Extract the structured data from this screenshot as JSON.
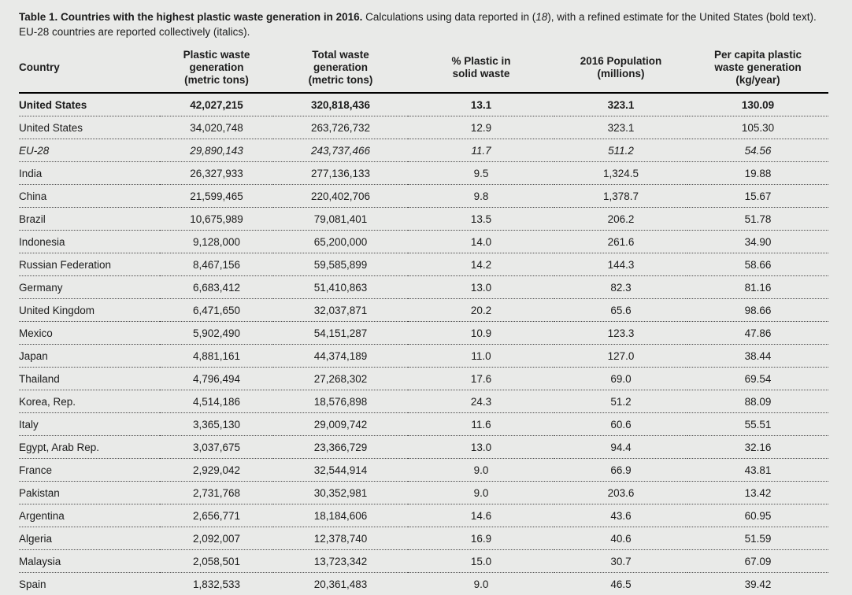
{
  "caption": {
    "title_bold": "Table 1. Countries with the highest plastic waste generation in 2016.",
    "text_before_ref": " Calculations using data reported in (",
    "ref_italic": "18",
    "text_after_ref": "), with a refined estimate for the United States (bold text). EU-28 countries are reported collectively (italics)."
  },
  "table": {
    "headers": [
      "Country",
      "Plastic waste\ngeneration\n(metric tons)",
      "Total waste\ngeneration\n(metric tons)",
      "% Plastic in\nsolid waste",
      "2016 Population\n(millions)",
      "Per capita plastic\nwaste generation\n(kg/year)"
    ],
    "column_keys": [
      "country",
      "plastic-waste-generation",
      "total-waste-generation",
      "pct-plastic-in-solid-waste",
      "population-2016-millions",
      "per-capita-plastic-waste-kg-year"
    ],
    "rows": [
      {
        "style": "bold",
        "cells": [
          "United States",
          "42,027,215",
          "320,818,436",
          "13.1",
          "323.1",
          "130.09"
        ]
      },
      {
        "style": "normal",
        "cells": [
          "United States",
          "34,020,748",
          "263,726,732",
          "12.9",
          "323.1",
          "105.30"
        ]
      },
      {
        "style": "italic",
        "cells": [
          "EU-28",
          "29,890,143",
          "243,737,466",
          "11.7",
          "511.2",
          "54.56"
        ]
      },
      {
        "style": "normal",
        "cells": [
          "India",
          "26,327,933",
          "277,136,133",
          "9.5",
          "1,324.5",
          "19.88"
        ]
      },
      {
        "style": "normal",
        "cells": [
          "China",
          "21,599,465",
          "220,402,706",
          "9.8",
          "1,378.7",
          "15.67"
        ]
      },
      {
        "style": "normal",
        "cells": [
          "Brazil",
          "10,675,989",
          "79,081,401",
          "13.5",
          "206.2",
          "51.78"
        ]
      },
      {
        "style": "normal",
        "cells": [
          "Indonesia",
          "9,128,000",
          "65,200,000",
          "14.0",
          "261.6",
          "34.90"
        ]
      },
      {
        "style": "normal",
        "cells": [
          "Russian Federation",
          "8,467,156",
          "59,585,899",
          "14.2",
          "144.3",
          "58.66"
        ]
      },
      {
        "style": "normal",
        "cells": [
          "Germany",
          "6,683,412",
          "51,410,863",
          "13.0",
          "82.3",
          "81.16"
        ]
      },
      {
        "style": "normal",
        "cells": [
          "United Kingdom",
          "6,471,650",
          "32,037,871",
          "20.2",
          "65.6",
          "98.66"
        ]
      },
      {
        "style": "normal",
        "cells": [
          "Mexico",
          "5,902,490",
          "54,151,287",
          "10.9",
          "123.3",
          "47.86"
        ]
      },
      {
        "style": "normal",
        "cells": [
          "Japan",
          "4,881,161",
          "44,374,189",
          "11.0",
          "127.0",
          "38.44"
        ]
      },
      {
        "style": "normal",
        "cells": [
          "Thailand",
          "4,796,494",
          "27,268,302",
          "17.6",
          "69.0",
          "69.54"
        ]
      },
      {
        "style": "normal",
        "cells": [
          "Korea, Rep.",
          "4,514,186",
          "18,576,898",
          "24.3",
          "51.2",
          "88.09"
        ]
      },
      {
        "style": "normal",
        "cells": [
          "Italy",
          "3,365,130",
          "29,009,742",
          "11.6",
          "60.6",
          "55.51"
        ]
      },
      {
        "style": "normal",
        "cells": [
          "Egypt, Arab Rep.",
          "3,037,675",
          "23,366,729",
          "13.0",
          "94.4",
          "32.16"
        ]
      },
      {
        "style": "normal",
        "cells": [
          "France",
          "2,929,042",
          "32,544,914",
          "9.0",
          "66.9",
          "43.81"
        ]
      },
      {
        "style": "normal",
        "cells": [
          "Pakistan",
          "2,731,768",
          "30,352,981",
          "9.0",
          "203.6",
          "13.42"
        ]
      },
      {
        "style": "normal",
        "cells": [
          "Argentina",
          "2,656,771",
          "18,184,606",
          "14.6",
          "43.6",
          "60.95"
        ]
      },
      {
        "style": "normal",
        "cells": [
          "Algeria",
          "2,092,007",
          "12,378,740",
          "16.9",
          "40.6",
          "51.59"
        ]
      },
      {
        "style": "normal",
        "cells": [
          "Malaysia",
          "2,058,501",
          "13,723,342",
          "15.0",
          "30.7",
          "67.09"
        ]
      },
      {
        "style": "normal",
        "cells": [
          "Spain",
          "1,832,533",
          "20,361,483",
          "9.0",
          "46.5",
          "39.42"
        ]
      }
    ]
  },
  "colors": {
    "background": "#e9eae8",
    "text": "#1c1c1c",
    "header_rule": "#000000",
    "row_divider_dotted": "#4d4d4d"
  }
}
